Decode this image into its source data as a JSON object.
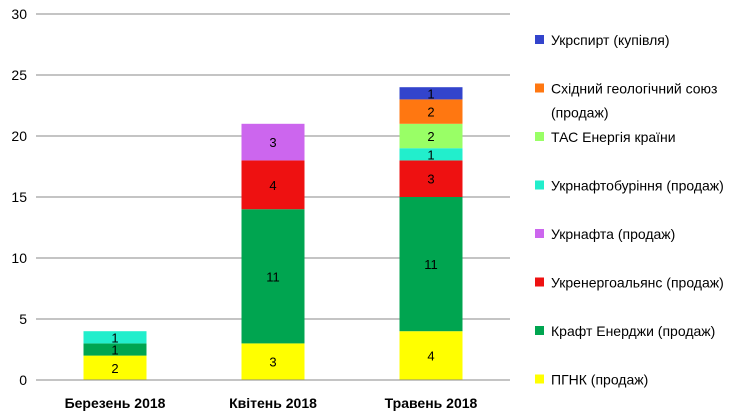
{
  "chart_data": {
    "type": "bar",
    "stacked": true,
    "categories": [
      "Березень 2018",
      "Квітень 2018",
      "Травень 2018"
    ],
    "ylim": [
      0,
      30
    ],
    "yticks": [
      0,
      5,
      10,
      15,
      20,
      25,
      30
    ],
    "grid": true,
    "legend_position": "right",
    "series": [
      {
        "name": "ПГНК (продаж)",
        "color": "#ffff00",
        "values": [
          2,
          3,
          4
        ]
      },
      {
        "name": "Крафт Енерджи (продаж)",
        "color": "#00a550",
        "values": [
          1,
          11,
          11
        ]
      },
      {
        "name": "Укренергоальянс (продаж)",
        "color": "#ee1111",
        "values": [
          0,
          4,
          3
        ]
      },
      {
        "name": "Укрнафта (продаж)",
        "color": "#cc66ee",
        "values": [
          0,
          3,
          0
        ]
      },
      {
        "name": "Укрнафтобуріння (продаж)",
        "color": "#22eecc",
        "values": [
          1,
          0,
          1
        ]
      },
      {
        "name": "ТАС Енергія країни",
        "color": "#99ff66",
        "values": [
          0,
          0,
          2
        ]
      },
      {
        "name": "Східний геологічний союз (продаж)",
        "color": "#ff7711",
        "values": [
          0,
          0,
          2
        ]
      },
      {
        "name": "Укрспирт (купівля)",
        "color": "#3344cc",
        "values": [
          0,
          0,
          1
        ]
      }
    ]
  },
  "legend_lines": [
    [
      "Укрспирт (купівля)"
    ],
    [
      "Східний геологічний союз",
      "(продаж)"
    ],
    [
      "ТАС Енергія країни"
    ],
    [
      "Укрнафтобуріння (продаж)"
    ],
    [
      "Укрнафта (продаж)"
    ],
    [
      "Укренергоальянс (продаж)"
    ],
    [
      "Крафт Енерджи (продаж)"
    ],
    [
      "ПГНК (продаж)"
    ]
  ]
}
